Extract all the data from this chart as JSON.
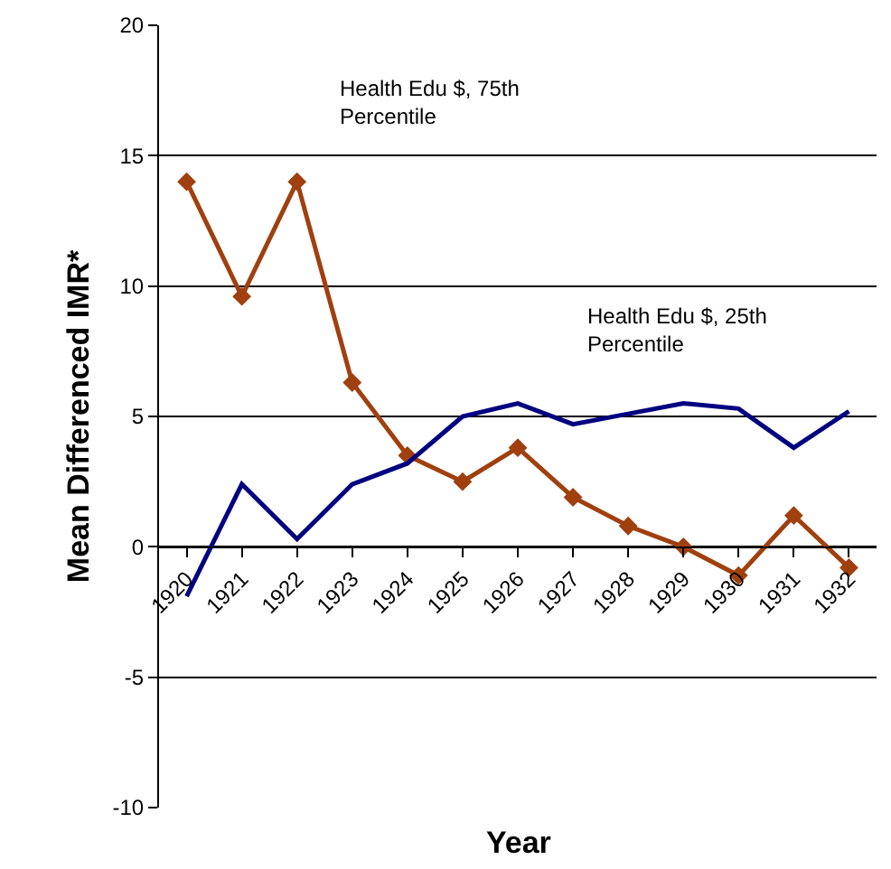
{
  "chart_data": {
    "type": "line",
    "xlabel": "Year",
    "ylabel": "Mean Differenced IMR*",
    "categories": [
      "1920",
      "1921",
      "1922",
      "1923",
      "1924",
      "1925",
      "1926",
      "1927",
      "1928",
      "1929",
      "1930",
      "1931",
      "1932"
    ],
    "series": [
      {
        "name": "Health Edu $, 75th Percentile",
        "color": "#a0400f",
        "marker": "diamond",
        "values": [
          14,
          9.6,
          14,
          6.3,
          3.5,
          2.5,
          3.8,
          1.9,
          0.8,
          0,
          -1.1,
          1.2,
          -0.8
        ]
      },
      {
        "name": "Health Edu $, 25th Percentile",
        "color": "#000080",
        "marker": "none",
        "values": [
          -1.9,
          2.4,
          0.3,
          2.4,
          3.2,
          5.0,
          5.5,
          4.7,
          5.1,
          5.5,
          5.3,
          3.8,
          5.2
        ]
      }
    ],
    "ylim": [
      -10,
      20
    ],
    "yticks": [
      -10,
      -5,
      0,
      5,
      10,
      15,
      20
    ],
    "grid": "y",
    "legend": false
  }
}
